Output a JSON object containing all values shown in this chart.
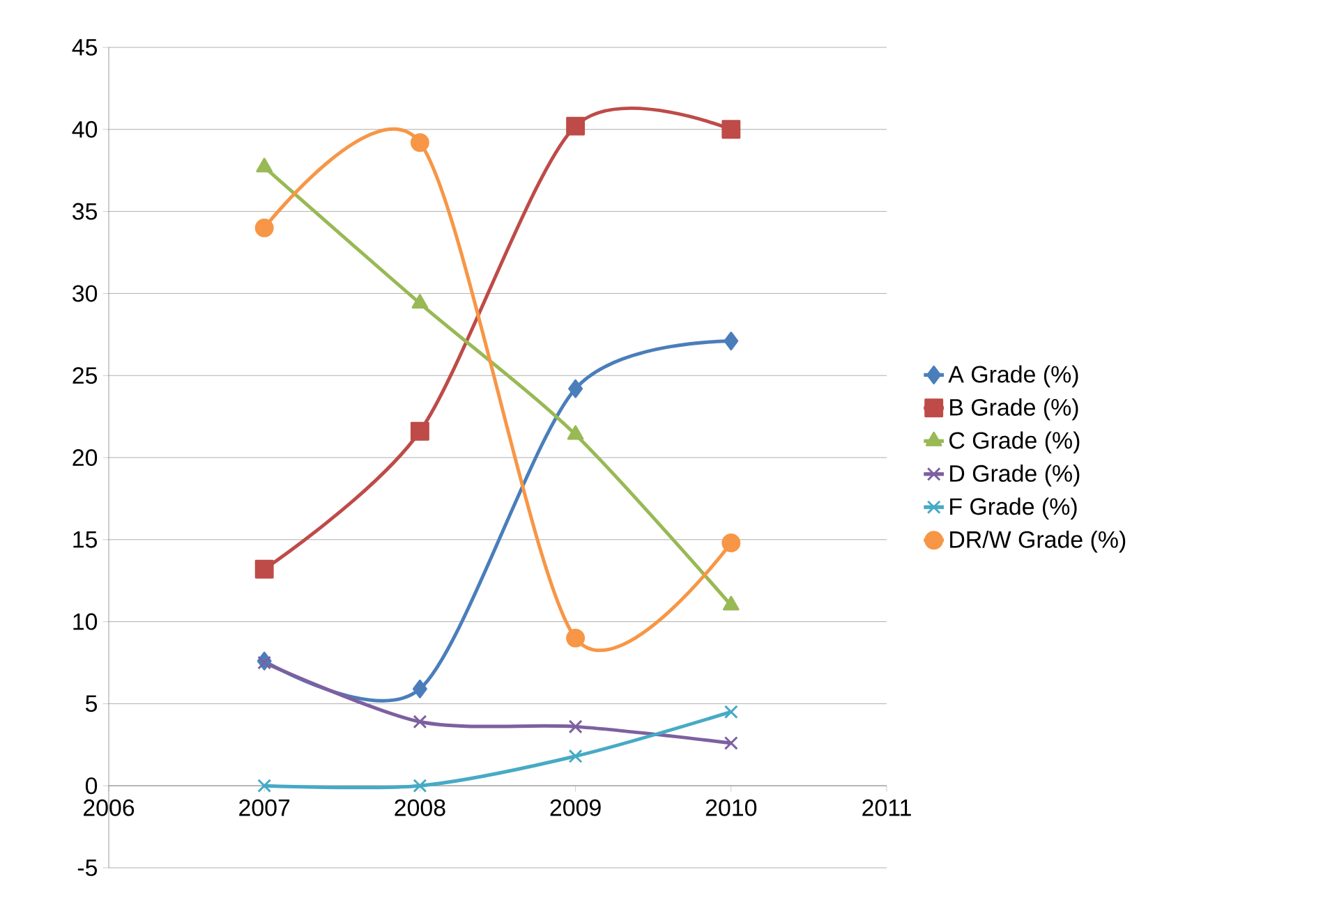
{
  "chart_data": {
    "type": "line",
    "x": [
      2007,
      2008,
      2009,
      2010
    ],
    "series": [
      {
        "name": "A Grade (%)",
        "color": "#4a7ebb",
        "marker": "diamond",
        "values": [
          7.6,
          5.9,
          24.2,
          27.1
        ]
      },
      {
        "name": "B Grade (%)",
        "color": "#be4b48",
        "marker": "square",
        "values": [
          13.2,
          21.6,
          40.2,
          40.0
        ]
      },
      {
        "name": "C Grade (%)",
        "color": "#98b954",
        "marker": "triangle",
        "values": [
          37.7,
          29.4,
          21.4,
          11.0
        ]
      },
      {
        "name": "D Grade (%)",
        "color": "#7d60a0",
        "marker": "cross",
        "values": [
          7.5,
          3.9,
          3.6,
          2.6
        ]
      },
      {
        "name": "F Grade (%)",
        "color": "#46aac5",
        "marker": "cross",
        "values": [
          0,
          0,
          1.8,
          4.5
        ]
      },
      {
        "name": "DR/W Grade (%)",
        "color": "#f79646",
        "marker": "circle",
        "values": [
          34.0,
          39.2,
          9.0,
          14.8
        ]
      }
    ],
    "xlim": [
      2006,
      2011
    ],
    "xticks": [
      2006,
      2007,
      2008,
      2009,
      2010,
      2011
    ],
    "ylim": [
      -5,
      45
    ],
    "yticks": [
      -5,
      0,
      5,
      10,
      15,
      20,
      25,
      30,
      35,
      40,
      45
    ],
    "grid": "y",
    "legend": "right",
    "line_style": "solid"
  }
}
